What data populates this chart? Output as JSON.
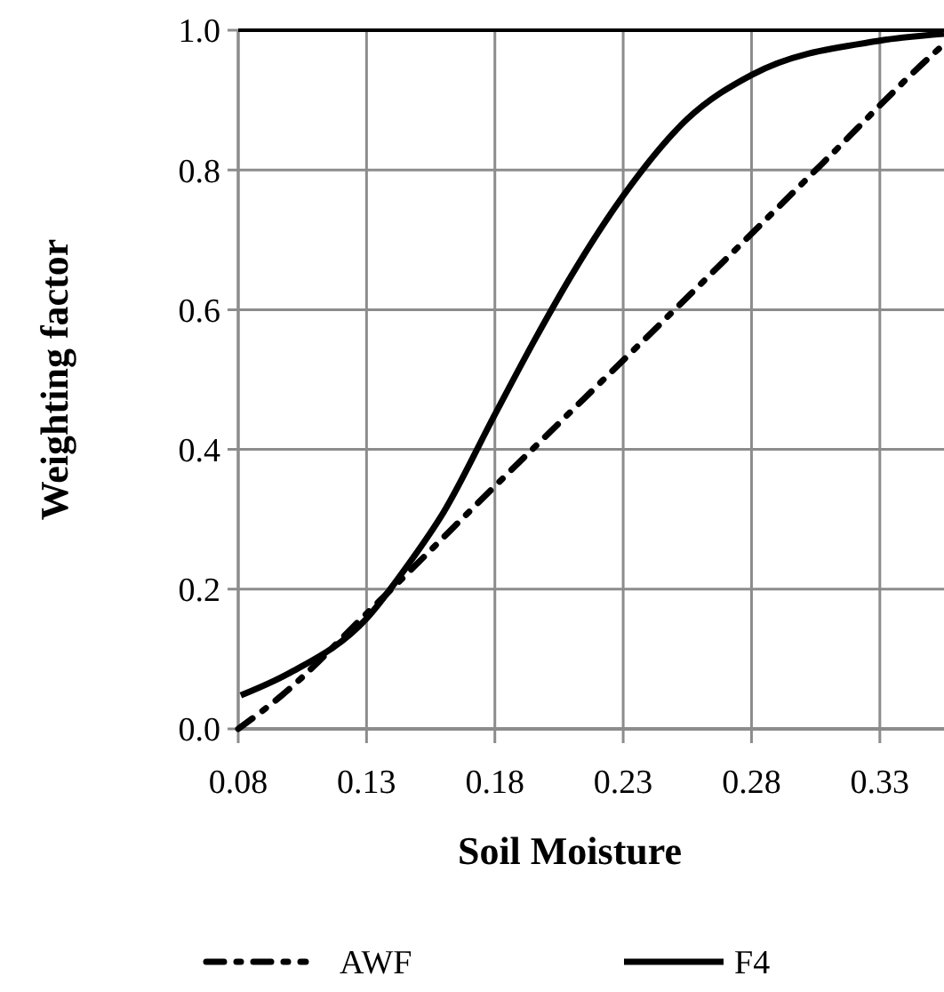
{
  "chart_data": {
    "type": "line",
    "xlabel": "Soil Moisture",
    "ylabel": "Weighting factor",
    "xlim": [
      0.08,
      0.355
    ],
    "xticks": [
      0.08,
      0.13,
      0.18,
      0.23,
      0.28,
      0.33
    ],
    "ylim": [
      0,
      1
    ],
    "yticks": [
      {
        "value": 0,
        "label": "0.0"
      },
      {
        "value": 0.2,
        "label": "0.2"
      },
      {
        "value": 0.4,
        "label": "0.4"
      },
      {
        "value": 0.6,
        "label": "0.6"
      },
      {
        "value": 0.8,
        "label": "0.8"
      },
      {
        "value": 1,
        "label": "1.0"
      }
    ],
    "grid": true,
    "legend": "bottom",
    "series": [
      {
        "name": "AWF",
        "color": "#000000",
        "line_style": "dashdot",
        "x": [
          0.08,
          0.097,
          0.13,
          0.181,
          0.244,
          0.307,
          0.349,
          0.355
        ],
        "values": [
          0,
          0.048,
          0.165,
          0.351,
          0.578,
          0.807,
          0.96,
          0.98
        ]
      },
      {
        "name": "F4",
        "color": "#000000",
        "line_style": "solid",
        "x": [
          0.081,
          0.1,
          0.13,
          0.146,
          0.16,
          0.18,
          0.196,
          0.21,
          0.23,
          0.255,
          0.28,
          0.33,
          0.355
        ],
        "values": [
          0.048,
          0.08,
          0.158,
          0.234,
          0.31,
          0.45,
          0.56,
          0.65,
          0.763,
          0.873,
          0.936,
          0.985,
          0.995
        ]
      }
    ]
  }
}
